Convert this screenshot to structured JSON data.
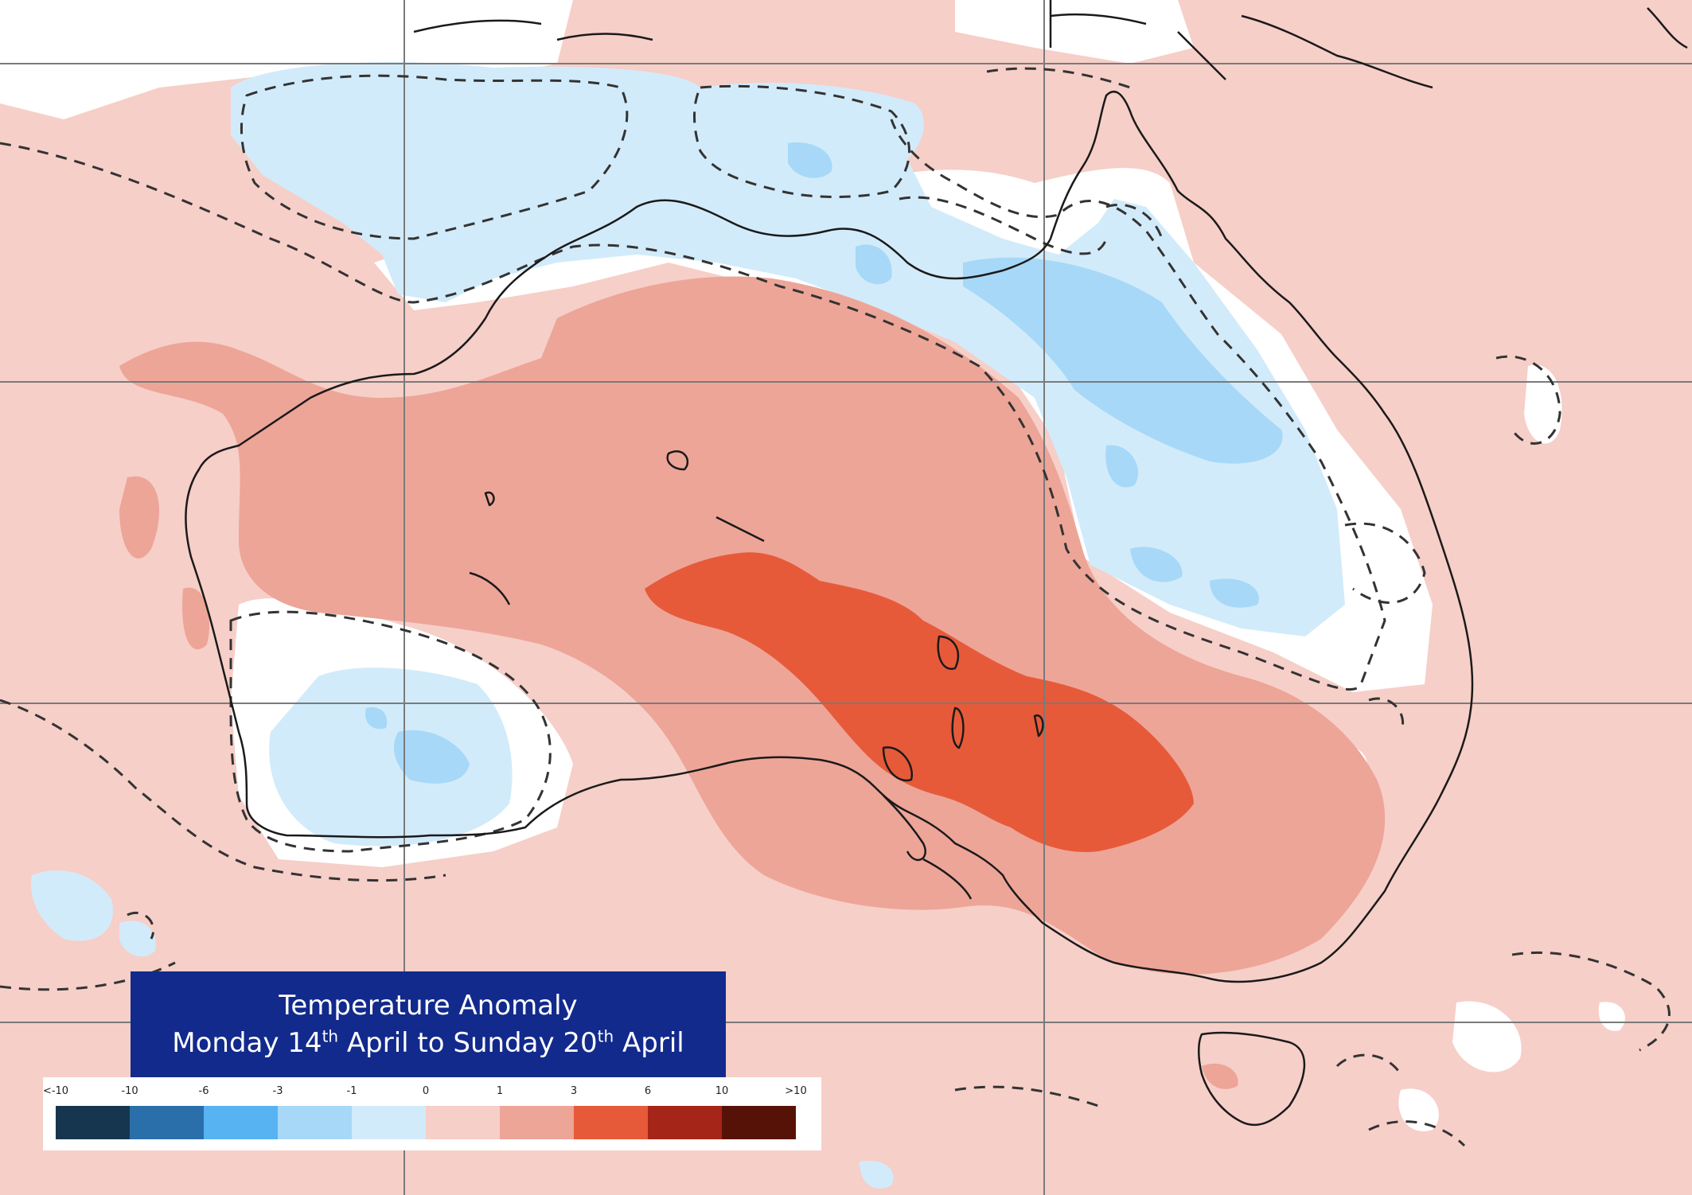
{
  "title": {
    "line1": "Temperature Anomaly",
    "day_start": "Monday 14",
    "sup_start": "th",
    "mid": " April to Sunday 20",
    "sup_end": "th",
    "month_end": " April"
  },
  "legend": {
    "tick_labels": [
      "<-10",
      "-10",
      "-6",
      "-3",
      "-1",
      "0",
      "1",
      "3",
      "6",
      "10",
      ">10"
    ],
    "colors": [
      "#16364f",
      "#2a6fa9",
      "#57b3f2",
      "#a7d8f7",
      "#d2ebfa",
      "#f6cfc8",
      "#eda598",
      "#e65a3a",
      "#a52518",
      "#571208"
    ]
  },
  "map_colors": {
    "anomaly_0_to_1": "#f6cfc8",
    "anomaly_1_to_3": "#eda598",
    "anomaly_3_to_6": "#e65a3a",
    "anomaly_neg1_to_0": "#d2ebfa",
    "anomaly_neg3_to_neg1": "#a7d8f7",
    "neutral": "#ffffff",
    "coastline": "#1a1a1a",
    "grid": "#7a7a7a"
  }
}
